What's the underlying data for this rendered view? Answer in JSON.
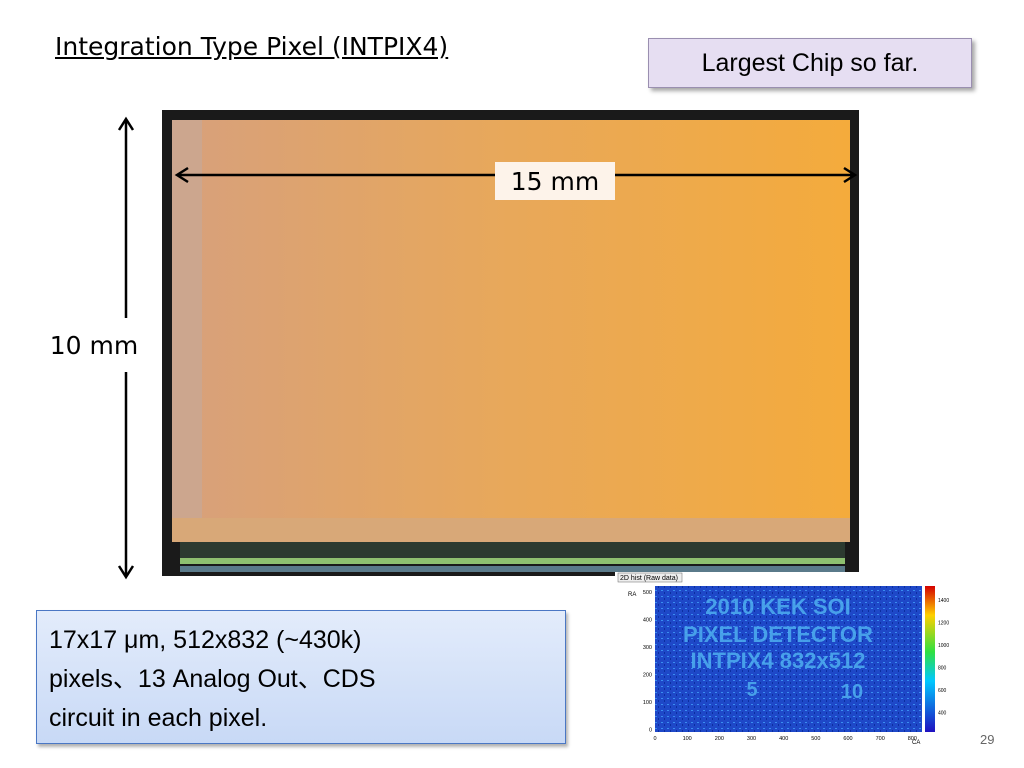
{
  "slide": {
    "title": "Integration Type Pixel (INTPIX4)",
    "callout": "Largest Chip so far.",
    "width_label": "15 mm",
    "height_label": "10 mm",
    "description_lines": [
      "17x17 μm, 512x832 (~430k)",
      "pixels、13 Analog Out、CDS",
      "circuit in each pixel."
    ],
    "page_number": "29",
    "inset": {
      "title": "2D hist (Raw data)",
      "x_label": "CA",
      "y_label": "RA",
      "xticks": [
        "0",
        "100",
        "200",
        "300",
        "400",
        "500",
        "600",
        "700",
        "800"
      ],
      "yticks": [
        "500",
        "400",
        "300",
        "200",
        "100",
        "0"
      ],
      "colorbar_ticks": [
        "1400",
        "1200",
        "1000",
        "800",
        "600",
        "400"
      ],
      "image_text": [
        "2010 KEK SOI",
        "PIXEL DETECTOR",
        "INTPIX4  832x512",
        "5",
        "10"
      ]
    }
  }
}
